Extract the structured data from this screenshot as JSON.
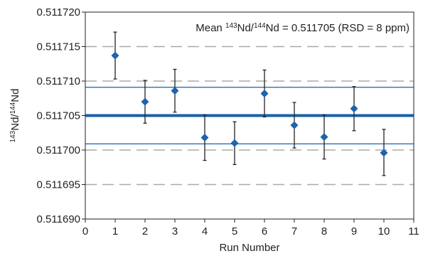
{
  "chart_data": {
    "type": "scatter",
    "title": "",
    "xlabel": "Run Number",
    "ylabel": {
      "parts": [
        {
          "text": "143",
          "sup": true
        },
        {
          "text": "Nd/",
          "sup": false
        },
        {
          "text": "144",
          "sup": true
        },
        {
          "text": "Nd",
          "sup": false
        }
      ]
    },
    "annotation": {
      "parts": [
        {
          "text": "Mean ",
          "sup": false
        },
        {
          "text": "143",
          "sup": true
        },
        {
          "text": "Nd/",
          "sup": false
        },
        {
          "text": "144",
          "sup": true
        },
        {
          "text": "Nd = 0.511705 (RSD = 8 ppm)",
          "sup": false
        }
      ]
    },
    "xlim": [
      0,
      11
    ],
    "ylim": [
      0.51169,
      0.51172
    ],
    "x_ticks": [
      0,
      1,
      2,
      3,
      4,
      5,
      6,
      7,
      8,
      9,
      10,
      11
    ],
    "y_ticks": [
      0.51169,
      0.511695,
      0.5117,
      0.511705,
      0.51171,
      0.511715,
      0.51172
    ],
    "y_tick_labels": [
      "0.511690",
      "0.511695",
      "0.511700",
      "0.511705",
      "0.511710",
      "0.511715",
      "0.511720"
    ],
    "dashed_gridlines_y": [
      0.511695,
      0.5117,
      0.51171,
      0.511715
    ],
    "mean": 0.511705,
    "upper_band": 0.5117091,
    "lower_band": 0.5117009,
    "series": [
      {
        "x": [
          1,
          2,
          3,
          4,
          5,
          6,
          7,
          8,
          9,
          10
        ],
        "y": [
          0.5117137,
          0.511707,
          0.5117086,
          0.5117018,
          0.511701,
          0.5117082,
          0.5117036,
          0.5117019,
          0.511706,
          0.5116996
        ],
        "err_low": [
          0.5117103,
          0.5117039,
          0.5117055,
          0.5116985,
          0.5116979,
          0.5117048,
          0.5117003,
          0.5116987,
          0.5117028,
          0.5116963
        ],
        "err_high": [
          0.5117171,
          0.5117101,
          0.5117117,
          0.5117051,
          0.5117041,
          0.5117116,
          0.5117069,
          0.5117051,
          0.5117092,
          0.511703
        ]
      }
    ],
    "grid": "horizontal-dashed",
    "legend": "none",
    "colors": {
      "marker": "#1f63ad",
      "mean_line": "#1a5fa8",
      "band_line": "#2a70b8",
      "gridline": "#aaaaaa",
      "error_bar": "#222222"
    }
  }
}
